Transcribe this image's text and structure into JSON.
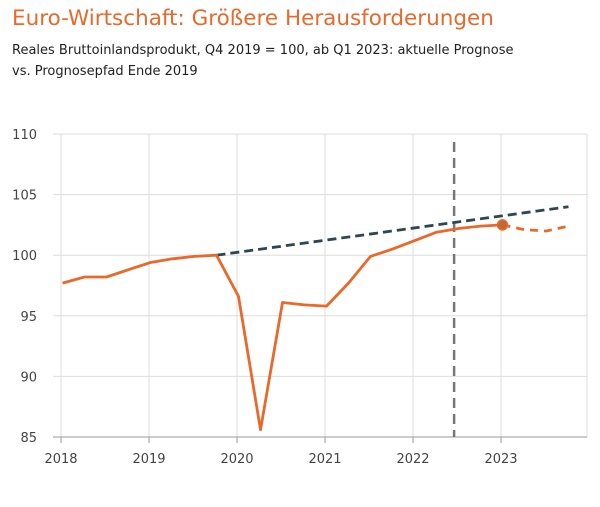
{
  "title": "Euro-Wirtschaft: Größere Herausforderungen",
  "subtitle": "Reales Bruttoinlandsprodukt, Q4 2019 = 100, ab Q1 2023: aktuelle Prognose vs. Prognosepfad Ende 2019",
  "colors": {
    "actual": "#e8692a",
    "path2019": "#2f4650",
    "marker_line": "#777777",
    "grid": "#dddddd",
    "axis": "#999999"
  },
  "chart_data": {
    "type": "line",
    "title": "Euro-Wirtschaft: Größere Herausforderungen",
    "subtitle": "Reales Bruttoinlandsprodukt, Q4 2019 = 100, ab Q1 2023: aktuelle Prognose vs. Prognosepfad Ende 2019",
    "xlabel": "",
    "ylabel": "",
    "xlim": [
      2018.0,
      2024.0
    ],
    "ylim": [
      85,
      110
    ],
    "yticks": [
      85,
      90,
      95,
      100,
      105,
      110
    ],
    "xticks": [
      2018,
      2019,
      2020,
      2021,
      2022,
      2023
    ],
    "xtick_labels": [
      "2018",
      "2019",
      "2020",
      "2021",
      "2022",
      "2023"
    ],
    "grid": "vertical and horizontal",
    "vline_x": 2022.45,
    "series": [
      {
        "style": "solid",
        "color": "#e8692a",
        "points": [
          [
            2018.0,
            97.7
          ],
          [
            2018.25,
            98.2
          ],
          [
            2018.5,
            98.2
          ],
          [
            2018.75,
            98.8
          ],
          [
            2019.0,
            99.4
          ],
          [
            2019.25,
            99.7
          ],
          [
            2019.5,
            99.9
          ],
          [
            2019.75,
            100.0
          ],
          [
            2020.0,
            96.6
          ],
          [
            2020.25,
            85.6
          ],
          [
            2020.5,
            96.1
          ],
          [
            2020.75,
            95.9
          ],
          [
            2021.0,
            95.8
          ],
          [
            2021.25,
            97.7
          ],
          [
            2021.5,
            99.9
          ],
          [
            2021.75,
            100.5
          ],
          [
            2022.0,
            101.2
          ],
          [
            2022.25,
            101.9
          ],
          [
            2022.5,
            102.2
          ],
          [
            2022.75,
            102.4
          ],
          [
            2023.0,
            102.5
          ]
        ]
      },
      {
        "style": "dashed",
        "color": "#e8692a",
        "points": [
          [
            2023.0,
            102.5
          ],
          [
            2023.25,
            102.1
          ],
          [
            2023.5,
            102.0
          ],
          [
            2023.75,
            102.4
          ]
        ]
      },
      {
        "style": "dashed",
        "color": "#2f4650",
        "points": [
          [
            2019.75,
            100.0
          ],
          [
            2023.75,
            104.0
          ]
        ]
      }
    ],
    "highlight_point": [
      2023.0,
      102.5
    ]
  }
}
